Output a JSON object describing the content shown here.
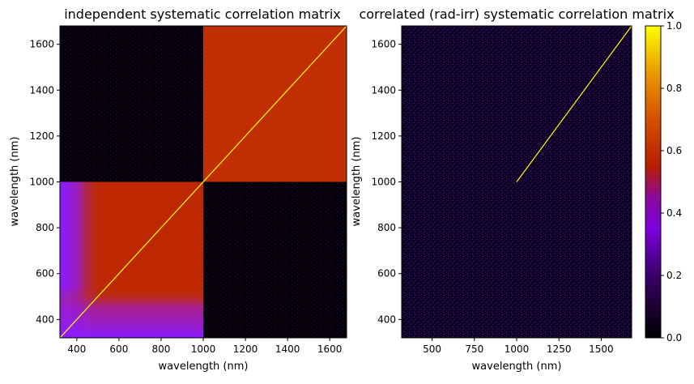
{
  "chart_data": [
    {
      "type": "heatmap",
      "title": "independent systematic correlation matrix",
      "xlabel": "wavelength (nm)",
      "ylabel": "wavelength (nm)",
      "xlim": [
        320,
        1680
      ],
      "ylim": [
        320,
        1680
      ],
      "xticks": [
        400,
        600,
        800,
        1000,
        1200,
        1400,
        1600
      ],
      "yticks": [
        400,
        600,
        800,
        1000,
        1200,
        1400,
        1600
      ],
      "blocks": [
        {
          "x": [
            1000,
            1680
          ],
          "y": [
            1000,
            1680
          ],
          "value": 0.6
        },
        {
          "x": [
            320,
            1000
          ],
          "y": [
            320,
            1000
          ],
          "value": 0.58,
          "low_region_value": 0.3
        },
        {
          "x": [
            320,
            1000
          ],
          "y": [
            1000,
            1680
          ],
          "value": 0.03
        },
        {
          "x": [
            1000,
            1680
          ],
          "y": [
            320,
            1000
          ],
          "value": 0.03
        }
      ],
      "diagonal_value": 1.0
    },
    {
      "type": "heatmap",
      "title": "correlated (rad-irr) systematic correlation matrix",
      "xlabel": "wavelength (nm)",
      "ylabel": "wavelength (nm)",
      "xlim": [
        320,
        1680
      ],
      "ylim": [
        320,
        1680
      ],
      "xticks": [
        500,
        750,
        1000,
        1250,
        1500
      ],
      "yticks": [
        400,
        600,
        800,
        1000,
        1200,
        1400,
        1600
      ],
      "background_value": 0.12,
      "diagonal_value": 1.0,
      "diagonal_range": [
        1000,
        1680
      ]
    }
  ],
  "colorbar": {
    "colormap": "gnuplot",
    "range": [
      0.0,
      1.0
    ],
    "ticks": [
      "0.0",
      "0.2",
      "0.4",
      "0.6",
      "0.8",
      "1.0"
    ]
  }
}
